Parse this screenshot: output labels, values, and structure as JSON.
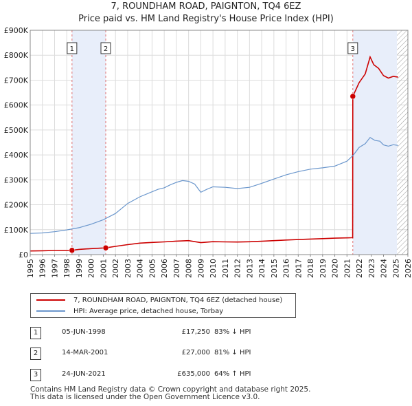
{
  "title_line1": "7, ROUNDHAM ROAD, PAIGNTON, TQ4 6EZ",
  "title_line2": "Price paid vs. HM Land Registry's House Price Index (HPI)",
  "colors": {
    "price": "#cc0000",
    "hpi": "#6a96cc",
    "shade": "#e8eefa",
    "vline": "#e07070"
  },
  "chart_data": {
    "type": "line",
    "y_ticks": [
      {
        "value": 0,
        "label": "£0"
      },
      {
        "value": 100000,
        "label": "£100K"
      },
      {
        "value": 200000,
        "label": "£200K"
      },
      {
        "value": 300000,
        "label": "£300K"
      },
      {
        "value": 400000,
        "label": "£400K"
      },
      {
        "value": 500000,
        "label": "£500K"
      },
      {
        "value": 600000,
        "label": "£600K"
      },
      {
        "value": 700000,
        "label": "£700K"
      },
      {
        "value": 800000,
        "label": "£800K"
      },
      {
        "value": 900000,
        "label": "£900K"
      }
    ],
    "x_ticks": [
      "1995",
      "1996",
      "1997",
      "1998",
      "1999",
      "2000",
      "2001",
      "2002",
      "2003",
      "2004",
      "2005",
      "2006",
      "2007",
      "2008",
      "2009",
      "2010",
      "2011",
      "2012",
      "2013",
      "2014",
      "2015",
      "2016",
      "2017",
      "2018",
      "2019",
      "2020",
      "2021",
      "2022",
      "2023",
      "2024",
      "2025",
      "2026"
    ],
    "xlim": [
      1995,
      2026
    ],
    "ylim": [
      0,
      900000
    ],
    "shaded_ranges": [
      [
        1998.43,
        2001.2
      ],
      [
        2021.48,
        2025.1
      ]
    ],
    "hatched_range": [
      2025.1,
      2026
    ],
    "series": [
      {
        "name": "7, ROUNDHAM ROAD, PAIGNTON, TQ4 6EZ (detached house)",
        "key": "price",
        "x": [
          1995,
          1996,
          1997,
          1998.43,
          1999,
          2000,
          2001.2,
          2002,
          2003,
          2004,
          2005,
          2006,
          2007,
          2008,
          2009,
          2010,
          2011,
          2012,
          2013,
          2014,
          2015,
          2016,
          2017,
          2018,
          2019,
          2020,
          2021.47,
          2021.48,
          2022,
          2022.5,
          2022.9,
          2023.2,
          2023.6,
          2024,
          2024.4,
          2024.8,
          2025.2
        ],
        "y": [
          14500,
          15500,
          16500,
          17250,
          21000,
          24000,
          27000,
          33000,
          40000,
          46000,
          49000,
          51000,
          54000,
          56000,
          48000,
          52000,
          51000,
          50500,
          51500,
          53500,
          56000,
          58500,
          60500,
          62500,
          64000,
          66000,
          68000,
          635000,
          690000,
          725000,
          793000,
          762000,
          747000,
          718000,
          708000,
          715000,
          712000
        ]
      },
      {
        "name": "HPI: Average price, detached house, Torbay",
        "key": "hpi",
        "x": [
          1995,
          1996,
          1997,
          1998,
          1999,
          2000,
          2001,
          2002,
          2003,
          2004,
          2005,
          2005.5,
          2006,
          2006.5,
          2007,
          2007.5,
          2008,
          2008.5,
          2009,
          2009.5,
          2010,
          2011,
          2012,
          2013,
          2014,
          2015,
          2016,
          2017,
          2018,
          2019,
          2020,
          2021,
          2021.5,
          2022,
          2022.5,
          2022.9,
          2023.3,
          2023.7,
          2024,
          2024.4,
          2024.8,
          2025.2
        ],
        "y": [
          85000,
          87000,
          92000,
          99000,
          108000,
          122000,
          140000,
          165000,
          205000,
          232000,
          252000,
          262000,
          268000,
          280000,
          290000,
          297000,
          294000,
          283000,
          250000,
          262000,
          272000,
          270000,
          265000,
          270000,
          286000,
          303000,
          320000,
          333000,
          343000,
          348000,
          355000,
          375000,
          398000,
          430000,
          445000,
          470000,
          458000,
          455000,
          440000,
          435000,
          441000,
          438000
        ]
      }
    ],
    "markers": [
      {
        "label": "1",
        "x": 1998.43,
        "y": 17250
      },
      {
        "label": "2",
        "x": 2001.2,
        "y": 27000
      },
      {
        "label": "3",
        "x": 2021.48,
        "y": 635000
      }
    ]
  },
  "legend": {
    "price_label": "7, ROUNDHAM ROAD, PAIGNTON, TQ4 6EZ (detached house)",
    "hpi_label": "HPI: Average price, detached house, Torbay"
  },
  "transactions": [
    {
      "num": "1",
      "date": "05-JUN-1998",
      "price": "£17,250",
      "hpi": "83% ↓ HPI"
    },
    {
      "num": "2",
      "date": "14-MAR-2001",
      "price": "£27,000",
      "hpi": "81% ↓ HPI"
    },
    {
      "num": "3",
      "date": "24-JUN-2021",
      "price": "£635,000",
      "hpi": "64% ↑ HPI"
    }
  ],
  "footer_line1": "Contains HM Land Registry data © Crown copyright and database right 2025.",
  "footer_line2": "This data is licensed under the Open Government Licence v3.0."
}
